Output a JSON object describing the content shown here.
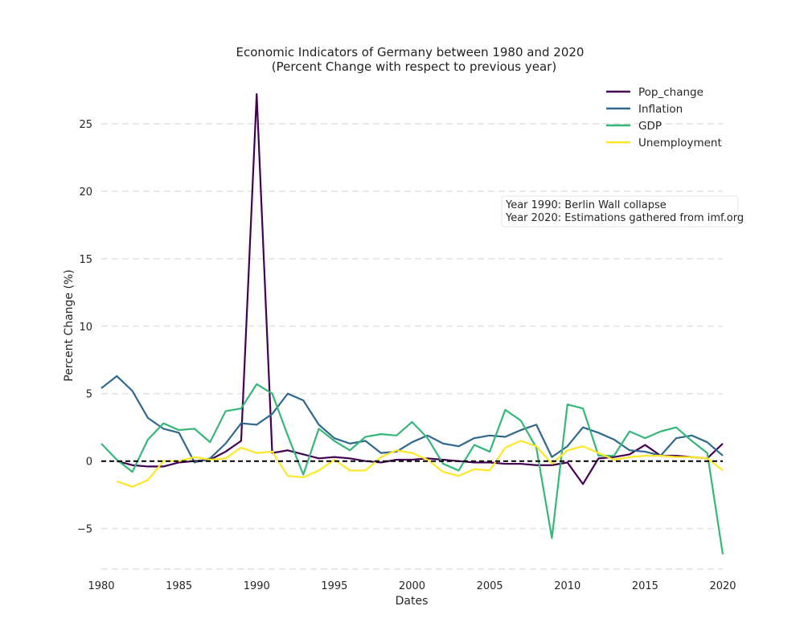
{
  "chart_data": {
    "type": "line",
    "title": "Economic Indicators of Germany between 1980 and 2020",
    "subtitle": "(Percent Change with respect to previous year)",
    "xlabel": "Dates",
    "ylabel": "Percent Change (%)",
    "xlim": [
      1980,
      2020
    ],
    "ylim": [
      -8,
      27.5
    ],
    "xticks": [
      1980,
      1985,
      1990,
      1995,
      2000,
      2005,
      2010,
      2015,
      2020
    ],
    "yticks": [
      -5,
      0,
      5,
      10,
      15,
      20,
      25
    ],
    "ytick_labels": [
      "−5",
      "0",
      "5",
      "10",
      "15",
      "20",
      "25"
    ],
    "grid": "horizontal dashed",
    "legend_position": "top-right",
    "reference_line": {
      "y": 0,
      "style": "dashed",
      "color": "#000000"
    },
    "annotation": [
      "Year 1990: Berlin Wall collapse",
      "Year 2020: Estimations gathered from imf.org"
    ],
    "series": [
      {
        "name": "Pop_change",
        "color": "#440154",
        "x": [
          1980,
          1981,
          1982,
          1983,
          1984,
          1985,
          1986,
          1987,
          1988,
          1989,
          1990,
          1991,
          1992,
          1993,
          1994,
          1995,
          1996,
          1997,
          1998,
          1999,
          2000,
          2001,
          2002,
          2003,
          2004,
          2005,
          2006,
          2007,
          2008,
          2009,
          2010,
          2011,
          2012,
          2013,
          2014,
          2015,
          2016,
          2017,
          2018,
          2019,
          2020
        ],
        "values": [
          null,
          0.0,
          -0.3,
          -0.4,
          -0.4,
          -0.1,
          0.0,
          0.1,
          0.7,
          1.5,
          27.2,
          0.6,
          0.8,
          0.5,
          0.2,
          0.3,
          0.2,
          0.0,
          -0.1,
          0.1,
          0.1,
          0.2,
          0.1,
          0.0,
          -0.1,
          -0.1,
          -0.2,
          -0.2,
          -0.3,
          -0.3,
          -0.1,
          -1.7,
          0.2,
          0.3,
          0.5,
          1.2,
          0.4,
          0.4,
          0.3,
          0.2,
          1.3
        ]
      },
      {
        "name": "Inflation",
        "color": "#31688e",
        "x": [
          1980,
          1981,
          1982,
          1983,
          1984,
          1985,
          1986,
          1987,
          1988,
          1989,
          1990,
          1991,
          1992,
          1993,
          1994,
          1995,
          1996,
          1997,
          1998,
          1999,
          2000,
          2001,
          2002,
          2003,
          2004,
          2005,
          2006,
          2007,
          2008,
          2009,
          2010,
          2011,
          2012,
          2013,
          2014,
          2015,
          2016,
          2017,
          2018,
          2019,
          2020
        ],
        "values": [
          5.4,
          6.3,
          5.2,
          3.2,
          2.4,
          2.1,
          -0.1,
          0.2,
          1.3,
          2.8,
          2.7,
          3.5,
          5.0,
          4.5,
          2.7,
          1.7,
          1.3,
          1.5,
          0.6,
          0.7,
          1.4,
          1.9,
          1.3,
          1.1,
          1.7,
          1.9,
          1.8,
          2.3,
          2.7,
          0.3,
          1.1,
          2.5,
          2.1,
          1.6,
          0.8,
          0.7,
          0.4,
          1.7,
          1.9,
          1.4,
          0.4
        ]
      },
      {
        "name": "GDP",
        "color": "#35b779",
        "x": [
          1980,
          1981,
          1982,
          1983,
          1984,
          1985,
          1986,
          1987,
          1988,
          1989,
          1990,
          1991,
          1992,
          1993,
          1994,
          1995,
          1996,
          1997,
          1998,
          1999,
          2000,
          2001,
          2002,
          2003,
          2004,
          2005,
          2006,
          2007,
          2008,
          2009,
          2010,
          2011,
          2012,
          2013,
          2014,
          2015,
          2016,
          2017,
          2018,
          2019,
          2020
        ],
        "values": [
          1.3,
          0.1,
          -0.8,
          1.6,
          2.8,
          2.3,
          2.4,
          1.4,
          3.7,
          3.9,
          5.7,
          5.0,
          1.9,
          -1.0,
          2.4,
          1.5,
          0.8,
          1.8,
          2.0,
          1.9,
          2.9,
          1.7,
          -0.2,
          -0.7,
          1.2,
          0.7,
          3.8,
          3.0,
          1.0,
          -5.7,
          4.2,
          3.9,
          0.4,
          0.4,
          2.2,
          1.7,
          2.2,
          2.5,
          1.5,
          0.6,
          -6.9
        ]
      },
      {
        "name": "Unemployment",
        "color": "#fde725",
        "x": [
          1980,
          1981,
          1982,
          1983,
          1984,
          1985,
          1986,
          1987,
          1988,
          1989,
          1990,
          1991,
          1992,
          1993,
          1994,
          1995,
          1996,
          1997,
          1998,
          1999,
          2000,
          2001,
          2002,
          2003,
          2004,
          2005,
          2006,
          2007,
          2008,
          2009,
          2010,
          2011,
          2012,
          2013,
          2014,
          2015,
          2016,
          2017,
          2018,
          2019,
          2020
        ],
        "values": [
          null,
          -1.5,
          -1.9,
          -1.4,
          0.0,
          0.0,
          0.3,
          0.1,
          0.2,
          1.0,
          0.6,
          0.7,
          -1.1,
          -1.2,
          -0.7,
          0.1,
          -0.7,
          -0.7,
          0.3,
          0.8,
          0.6,
          0.1,
          -0.8,
          -1.1,
          -0.6,
          -0.7,
          1.0,
          1.5,
          1.1,
          -0.2,
          0.8,
          1.1,
          0.6,
          0.1,
          0.3,
          0.4,
          0.4,
          0.3,
          0.3,
          0.2,
          -0.7
        ]
      }
    ]
  }
}
